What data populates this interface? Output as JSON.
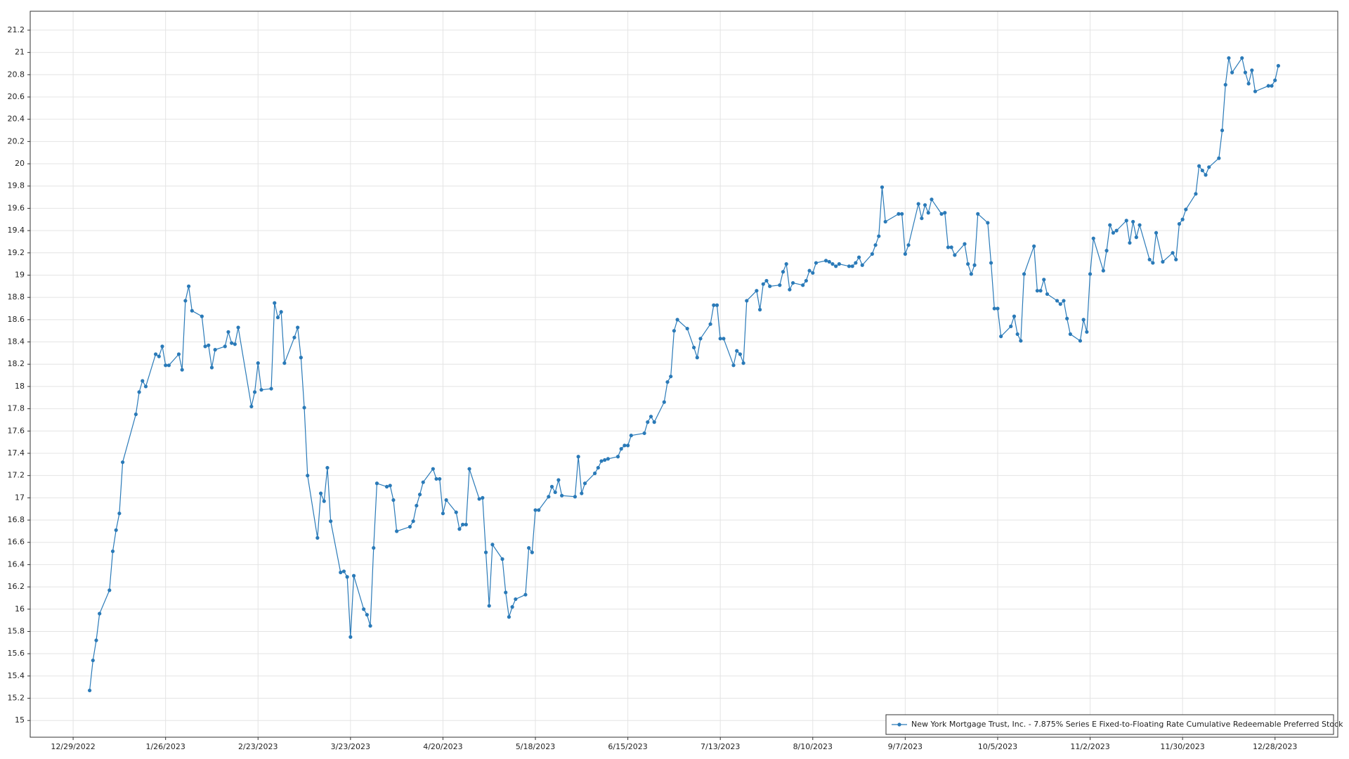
{
  "chart_data": {
    "type": "line",
    "x": [
      "2023-01-03",
      "2023-01-04",
      "2023-01-05",
      "2023-01-06",
      "2023-01-09",
      "2023-01-10",
      "2023-01-11",
      "2023-01-12",
      "2023-01-13",
      "2023-01-17",
      "2023-01-18",
      "2023-01-19",
      "2023-01-20",
      "2023-01-23",
      "2023-01-24",
      "2023-01-25",
      "2023-01-26",
      "2023-01-27",
      "2023-01-30",
      "2023-01-31",
      "2023-02-01",
      "2023-02-02",
      "2023-02-03",
      "2023-02-06",
      "2023-02-07",
      "2023-02-08",
      "2023-02-09",
      "2023-02-10",
      "2023-02-13",
      "2023-02-14",
      "2023-02-15",
      "2023-02-16",
      "2023-02-17",
      "2023-02-21",
      "2023-02-22",
      "2023-02-23",
      "2023-02-24",
      "2023-02-27",
      "2023-02-28",
      "2023-03-01",
      "2023-03-02",
      "2023-03-03",
      "2023-03-06",
      "2023-03-07",
      "2023-03-08",
      "2023-03-09",
      "2023-03-10",
      "2023-03-13",
      "2023-03-14",
      "2023-03-15",
      "2023-03-16",
      "2023-03-17",
      "2023-03-20",
      "2023-03-21",
      "2023-03-22",
      "2023-03-23",
      "2023-03-24",
      "2023-03-27",
      "2023-03-28",
      "2023-03-29",
      "2023-03-30",
      "2023-03-31",
      "2023-04-03",
      "2023-04-04",
      "2023-04-05",
      "2023-04-06",
      "2023-04-10",
      "2023-04-11",
      "2023-04-12",
      "2023-04-13",
      "2023-04-14",
      "2023-04-17",
      "2023-04-18",
      "2023-04-19",
      "2023-04-20",
      "2023-04-21",
      "2023-04-24",
      "2023-04-25",
      "2023-04-26",
      "2023-04-27",
      "2023-04-28",
      "2023-05-01",
      "2023-05-02",
      "2023-05-03",
      "2023-05-04",
      "2023-05-05",
      "2023-05-08",
      "2023-05-09",
      "2023-05-10",
      "2023-05-11",
      "2023-05-12",
      "2023-05-15",
      "2023-05-16",
      "2023-05-17",
      "2023-05-18",
      "2023-05-19",
      "2023-05-22",
      "2023-05-23",
      "2023-05-24",
      "2023-05-25",
      "2023-05-26",
      "2023-05-30",
      "2023-05-31",
      "2023-06-01",
      "2023-06-02",
      "2023-06-05",
      "2023-06-06",
      "2023-06-07",
      "2023-06-08",
      "2023-06-09",
      "2023-06-12",
      "2023-06-13",
      "2023-06-14",
      "2023-06-15",
      "2023-06-16",
      "2023-06-20",
      "2023-06-21",
      "2023-06-22",
      "2023-06-23",
      "2023-06-26",
      "2023-06-27",
      "2023-06-28",
      "2023-06-29",
      "2023-06-30",
      "2023-07-03",
      "2023-07-05",
      "2023-07-06",
      "2023-07-07",
      "2023-07-10",
      "2023-07-11",
      "2023-07-12",
      "2023-07-13",
      "2023-07-14",
      "2023-07-17",
      "2023-07-18",
      "2023-07-19",
      "2023-07-20",
      "2023-07-21",
      "2023-07-24",
      "2023-07-25",
      "2023-07-26",
      "2023-07-27",
      "2023-07-28",
      "2023-07-31",
      "2023-08-01",
      "2023-08-02",
      "2023-08-03",
      "2023-08-04",
      "2023-08-07",
      "2023-08-08",
      "2023-08-09",
      "2023-08-10",
      "2023-08-11",
      "2023-08-14",
      "2023-08-15",
      "2023-08-16",
      "2023-08-17",
      "2023-08-18",
      "2023-08-21",
      "2023-08-22",
      "2023-08-23",
      "2023-08-24",
      "2023-08-25",
      "2023-08-28",
      "2023-08-29",
      "2023-08-30",
      "2023-08-31",
      "2023-09-01",
      "2023-09-05",
      "2023-09-06",
      "2023-09-07",
      "2023-09-08",
      "2023-09-11",
      "2023-09-12",
      "2023-09-13",
      "2023-09-14",
      "2023-09-15",
      "2023-09-18",
      "2023-09-19",
      "2023-09-20",
      "2023-09-21",
      "2023-09-22",
      "2023-09-25",
      "2023-09-26",
      "2023-09-27",
      "2023-09-28",
      "2023-09-29",
      "2023-10-02",
      "2023-10-03",
      "2023-10-04",
      "2023-10-05",
      "2023-10-06",
      "2023-10-09",
      "2023-10-10",
      "2023-10-11",
      "2023-10-12",
      "2023-10-13",
      "2023-10-16",
      "2023-10-17",
      "2023-10-18",
      "2023-10-19",
      "2023-10-20",
      "2023-10-23",
      "2023-10-24",
      "2023-10-25",
      "2023-10-26",
      "2023-10-27",
      "2023-10-30",
      "2023-10-31",
      "2023-11-01",
      "2023-11-02",
      "2023-11-03",
      "2023-11-06",
      "2023-11-07",
      "2023-11-08",
      "2023-11-09",
      "2023-11-10",
      "2023-11-13",
      "2023-11-14",
      "2023-11-15",
      "2023-11-16",
      "2023-11-17",
      "2023-11-20",
      "2023-11-21",
      "2023-11-22",
      "2023-11-24",
      "2023-11-27",
      "2023-11-28",
      "2023-11-29",
      "2023-11-30",
      "2023-12-01",
      "2023-12-04",
      "2023-12-05",
      "2023-12-06",
      "2023-12-07",
      "2023-12-08",
      "2023-12-11",
      "2023-12-12",
      "2023-12-13",
      "2023-12-14",
      "2023-12-15",
      "2023-12-18",
      "2023-12-19",
      "2023-12-20",
      "2023-12-21",
      "2023-12-22",
      "2023-12-26",
      "2023-12-27",
      "2023-12-28",
      "2023-12-29"
    ],
    "series": [
      {
        "name": "New York Mortgage Trust, Inc. - 7.875% Series E Fixed-to-Floating Rate Cumulative Redeemable Preferred Stock",
        "color": "#2a7ab8",
        "values": [
          15.27,
          15.54,
          15.72,
          15.96,
          16.17,
          16.52,
          16.71,
          16.86,
          17.32,
          17.75,
          17.95,
          18.05,
          18.0,
          18.29,
          18.27,
          18.36,
          18.19,
          18.19,
          18.29,
          18.15,
          18.77,
          18.9,
          18.68,
          18.63,
          18.36,
          18.37,
          18.17,
          18.33,
          18.36,
          18.49,
          18.39,
          18.38,
          18.53,
          17.82,
          17.95,
          18.21,
          17.97,
          17.98,
          18.75,
          18.62,
          18.67,
          18.21,
          18.44,
          18.53,
          18.26,
          17.81,
          17.2,
          16.64,
          17.04,
          16.97,
          17.27,
          16.79,
          16.33,
          16.34,
          16.29,
          15.75,
          16.3,
          16.0,
          15.95,
          15.85,
          16.55,
          17.13,
          17.1,
          17.11,
          16.98,
          16.7,
          16.74,
          16.79,
          16.93,
          17.03,
          17.14,
          17.26,
          17.17,
          17.17,
          16.86,
          16.98,
          16.87,
          16.72,
          16.76,
          16.76,
          17.26,
          16.99,
          17.0,
          16.51,
          16.03,
          16.58,
          16.45,
          16.15,
          15.93,
          16.02,
          16.09,
          16.13,
          16.55,
          16.51,
          16.89,
          16.89,
          17.01,
          17.1,
          17.05,
          17.16,
          17.02,
          17.01,
          17.37,
          17.04,
          17.13,
          17.22,
          17.27,
          17.33,
          17.34,
          17.35,
          17.37,
          17.44,
          17.47,
          17.47,
          17.56,
          17.58,
          17.68,
          17.73,
          17.68,
          17.86,
          18.04,
          18.09,
          18.5,
          18.6,
          18.52,
          18.35,
          18.26,
          18.43,
          18.56,
          18.73,
          18.73,
          18.43,
          18.43,
          18.19,
          18.32,
          18.29,
          18.21,
          18.77,
          18.86,
          18.69,
          18.92,
          18.95,
          18.9,
          18.91,
          19.03,
          19.1,
          18.87,
          18.93,
          18.91,
          18.95,
          19.04,
          19.02,
          19.11,
          19.13,
          19.12,
          19.1,
          19.08,
          19.1,
          19.08,
          19.08,
          19.11,
          19.16,
          19.09,
          19.19,
          19.27,
          19.35,
          19.79,
          19.48,
          19.55,
          19.55,
          19.19,
          19.27,
          19.64,
          19.51,
          19.63,
          19.56,
          19.68,
          19.55,
          19.56,
          19.25,
          19.25,
          19.18,
          19.28,
          19.1,
          19.01,
          19.09,
          19.55,
          19.47,
          19.11,
          18.7,
          18.7,
          18.45,
          18.54,
          18.63,
          18.47,
          18.41,
          19.01,
          19.26,
          18.86,
          18.86,
          18.96,
          18.83,
          18.77,
          18.74,
          18.77,
          18.61,
          18.47,
          18.41,
          18.6,
          18.49,
          19.01,
          19.33,
          19.04,
          19.22,
          19.45,
          19.38,
          19.4,
          19.49,
          19.29,
          19.48,
          19.34,
          19.45,
          19.14,
          19.11,
          19.38,
          19.12,
          19.2,
          19.14,
          19.46,
          19.5,
          19.59,
          19.73,
          19.98,
          19.94,
          19.9,
          19.97,
          20.05,
          20.3,
          20.71,
          20.95,
          20.82,
          20.95,
          20.82,
          20.72,
          20.84,
          20.65,
          20.7,
          20.7,
          20.75,
          20.88
        ]
      }
    ],
    "xlim": [
      "2022-12-16",
      "2024-01-16"
    ],
    "xticks": [
      {
        "value": "2022-12-29",
        "label": "12/29/2022"
      },
      {
        "value": "2023-01-26",
        "label": "1/26/2023"
      },
      {
        "value": "2023-02-23",
        "label": "2/23/2023"
      },
      {
        "value": "2023-03-23",
        "label": "3/23/2023"
      },
      {
        "value": "2023-04-20",
        "label": "4/20/2023"
      },
      {
        "value": "2023-05-18",
        "label": "5/18/2023"
      },
      {
        "value": "2023-06-15",
        "label": "6/15/2023"
      },
      {
        "value": "2023-07-13",
        "label": "7/13/2023"
      },
      {
        "value": "2023-08-10",
        "label": "8/10/2023"
      },
      {
        "value": "2023-09-07",
        "label": "9/7/2023"
      },
      {
        "value": "2023-10-05",
        "label": "10/5/2023"
      },
      {
        "value": "2023-11-02",
        "label": "11/2/2023"
      },
      {
        "value": "2023-11-30",
        "label": "11/30/2023"
      },
      {
        "value": "2023-12-28",
        "label": "12/28/2023"
      }
    ],
    "ylim": [
      14.85,
      21.37
    ],
    "yticks": [
      15,
      15.2,
      15.4,
      15.6,
      15.8,
      16,
      16.2,
      16.4,
      16.6,
      16.8,
      17,
      17.2,
      17.4,
      17.6,
      17.8,
      18,
      18.2,
      18.4,
      18.6,
      18.8,
      19,
      19.2,
      19.4,
      19.6,
      19.8,
      20,
      20.2,
      20.4,
      20.6,
      20.8,
      21,
      21.2
    ],
    "grid": true,
    "legend": "lower right"
  }
}
